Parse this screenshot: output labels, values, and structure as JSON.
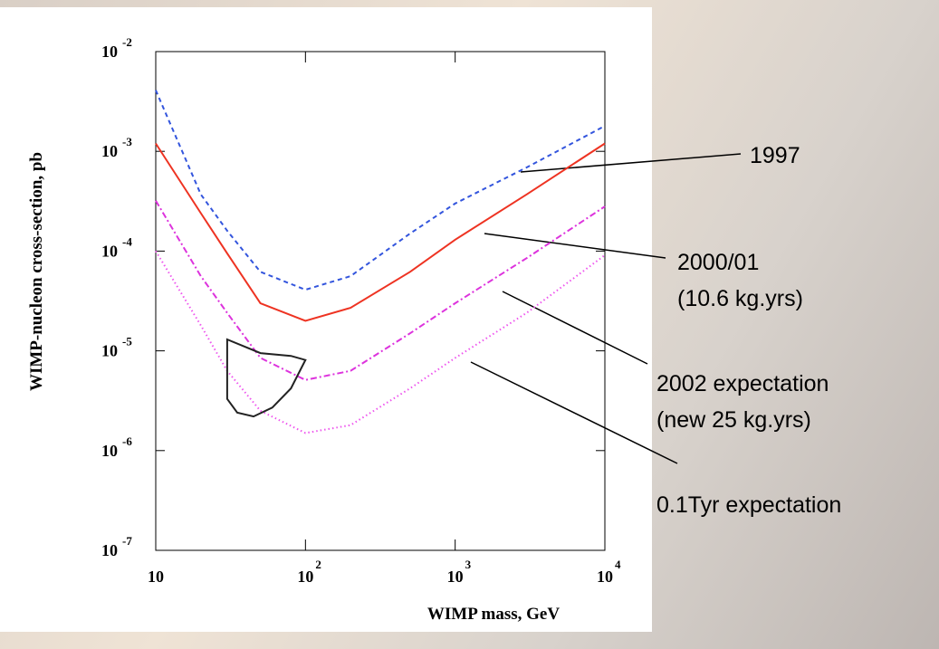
{
  "chart_data": {
    "type": "line",
    "x_label": "WIMP mass, GeV",
    "y_label": "WIMP-nucleon cross-section, pb",
    "log_x": true,
    "log_y": true,
    "xlim": [
      10,
      10000
    ],
    "ylim": [
      1e-07,
      0.01
    ],
    "xticks": [
      10,
      {
        "value": 100,
        "label": "10",
        "exponent": "2"
      },
      {
        "value": 1000,
        "label": "10",
        "exponent": "3"
      },
      {
        "value": 10000,
        "label": "10",
        "exponent": "4"
      }
    ],
    "yticks": [
      {
        "value": 1e-07,
        "label": "10",
        "exponent": "-7"
      },
      {
        "value": 1e-06,
        "label": "10",
        "exponent": "-6"
      },
      {
        "value": 1e-05,
        "label": "10",
        "exponent": "-5"
      },
      {
        "value": 0.0001,
        "label": "10",
        "exponent": "-4"
      },
      {
        "value": 0.001,
        "label": "10",
        "exponent": "-3"
      },
      {
        "value": 0.01,
        "label": "10",
        "exponent": "-2"
      }
    ],
    "x": [
      10,
      20,
      30,
      50,
      100,
      200,
      500,
      1000,
      3000,
      10000
    ],
    "series": [
      {
        "color": "#3355dd",
        "dash": "dashed",
        "values": [
          0.0041,
          0.00037,
          0.00016,
          6.2e-05,
          4.1e-05,
          5.6e-05,
          0.00015,
          0.0003,
          0.00069,
          0.0018
        ]
      },
      {
        "color": "#ee3322",
        "dash": "solid",
        "values": [
          0.0012,
          0.00024,
          9.5e-05,
          3e-05,
          2e-05,
          2.7e-05,
          6.2e-05,
          0.00013,
          0.00037,
          0.0012
        ]
      },
      {
        "color": "#dd33dd",
        "dash": "dashdot",
        "values": [
          0.00032,
          5.6e-05,
          2.4e-05,
          8.5e-06,
          5.1e-06,
          6.3e-06,
          1.5e-05,
          3e-05,
          8.5e-05,
          0.00028
        ]
      },
      {
        "color": "#ee55ee",
        "dash": "dotted",
        "values": [
          0.0001,
          1.8e-05,
          6.3e-06,
          2.5e-06,
          1.5e-06,
          1.8e-06,
          4.2e-06,
          8.5e-06,
          2.4e-05,
          9.1e-05
        ]
      }
    ],
    "region": {
      "color": "#222222",
      "x": [
        30,
        50,
        80,
        100,
        80,
        60,
        45,
        35,
        30
      ],
      "values": [
        1.3e-05,
        9.5e-06,
        8.9e-06,
        8.1e-06,
        4.2e-06,
        2.7e-06,
        2.2e-06,
        2.4e-06,
        3.3e-06
      ]
    },
    "annotations": [
      {
        "lines": [
          "1997"
        ]
      },
      {
        "lines": [
          "2000/01",
          "(10.6 kg.yrs)"
        ]
      },
      {
        "lines": [
          "2002 expectation",
          "(new 25 kg.yrs)"
        ]
      },
      {
        "lines": [
          "0.1Tyr expectation"
        ]
      }
    ]
  }
}
